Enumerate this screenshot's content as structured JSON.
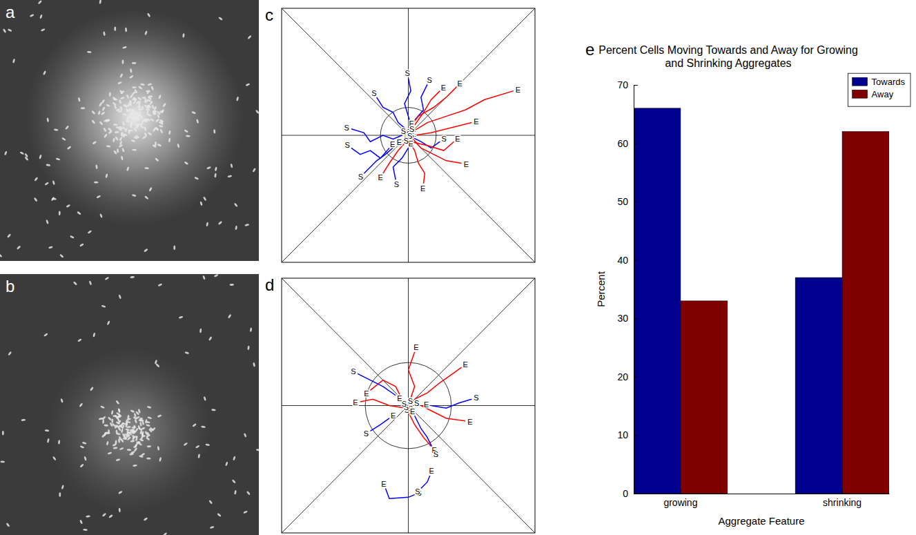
{
  "chart_data": [
    {
      "type": "image",
      "panel_label": "a"
    },
    {
      "type": "image",
      "panel_label": "b"
    },
    {
      "type": "line",
      "panel_label": "c",
      "xlim": [
        -1,
        1
      ],
      "ylim": [
        -1,
        1
      ],
      "tick_labels": false,
      "aggregate_radius": 0.22,
      "start_label": "S",
      "end_label": "E",
      "series": [
        {
          "color": "#0000ff",
          "x": [
            -0.45,
            -0.35,
            -0.3,
            -0.2,
            -0.12,
            -0.05
          ],
          "values": [
            0.05,
            0.02,
            -0.05,
            0.0,
            -0.03,
            0.0
          ]
        },
        {
          "color": "#0000ff",
          "x": [
            0.0,
            0.02,
            -0.03,
            0.0,
            0.03
          ],
          "values": [
            0.45,
            0.35,
            0.25,
            0.15,
            0.05
          ]
        },
        {
          "color": "#0000ff",
          "x": [
            -0.35,
            -0.3,
            -0.25,
            -0.18,
            -0.1
          ],
          "values": [
            -0.3,
            -0.25,
            -0.2,
            -0.15,
            -0.08
          ]
        },
        {
          "color": "#0000ff",
          "x": [
            -0.25,
            -0.2,
            -0.12,
            -0.08,
            -0.02
          ],
          "values": [
            0.3,
            0.22,
            0.18,
            0.1,
            0.05
          ]
        },
        {
          "color": "#0000ff",
          "x": [
            0.15,
            0.1,
            0.12,
            0.05
          ],
          "values": [
            0.4,
            0.3,
            0.2,
            0.12
          ]
        },
        {
          "color": "#0000ff",
          "x": [
            -0.45,
            -0.38,
            -0.3,
            -0.22,
            -0.15
          ],
          "values": [
            -0.1,
            -0.15,
            -0.12,
            -0.18,
            -0.1
          ]
        },
        {
          "color": "#0000ff",
          "x": [
            0.25,
            0.18,
            0.1,
            0.04
          ],
          "values": [
            -0.05,
            -0.1,
            -0.05,
            -0.02
          ]
        },
        {
          "color": "#0000ff",
          "x": [
            -0.1,
            -0.12,
            -0.05,
            0.0
          ],
          "values": [
            -0.35,
            -0.25,
            -0.18,
            -0.1
          ]
        },
        {
          "color": "#ff0000",
          "x": [
            0.02,
            0.15,
            0.3,
            0.45,
            0.6,
            0.83
          ],
          "values": [
            0.02,
            0.1,
            0.15,
            0.2,
            0.28,
            0.35
          ]
        },
        {
          "color": "#ff0000",
          "x": [
            0.0,
            0.08,
            0.2,
            0.3,
            0.38
          ],
          "values": [
            0.05,
            0.15,
            0.22,
            0.3,
            0.38
          ]
        },
        {
          "color": "#ff0000",
          "x": [
            0.03,
            0.1,
            0.2,
            0.3,
            0.42
          ],
          "values": [
            -0.02,
            -0.1,
            -0.15,
            -0.2,
            -0.22
          ]
        },
        {
          "color": "#ff0000",
          "x": [
            -0.02,
            0.05,
            0.08,
            0.13,
            0.12
          ],
          "values": [
            0.0,
            -0.12,
            -0.22,
            -0.3,
            -0.38
          ]
        },
        {
          "color": "#ff0000",
          "x": [
            0.0,
            -0.08,
            -0.15,
            -0.2
          ],
          "values": [
            -0.03,
            -0.12,
            -0.22,
            -0.3
          ]
        },
        {
          "color": "#ff0000",
          "x": [
            0.05,
            0.12,
            0.18,
            0.25
          ],
          "values": [
            0.08,
            0.18,
            0.28,
            0.35
          ]
        },
        {
          "color": "#ff0000",
          "x": [
            0.05,
            0.18,
            0.3,
            0.42,
            0.5
          ],
          "values": [
            0.0,
            0.02,
            0.05,
            0.08,
            0.1
          ]
        },
        {
          "color": "#ff0000",
          "x": [
            0.02,
            0.15,
            0.28,
            0.36
          ],
          "values": [
            -0.05,
            -0.08,
            -0.12,
            -0.05
          ]
        }
      ]
    },
    {
      "type": "line",
      "panel_label": "d",
      "xlim": [
        -1,
        1
      ],
      "ylim": [
        -1,
        1
      ],
      "tick_labels": false,
      "aggregate_radius": 0.34,
      "start_label": "S",
      "end_label": "E",
      "series": [
        {
          "color": "#ff0000",
          "x": [
            0.0,
            0.05,
            0.0,
            0.05
          ],
          "values": [
            0.0,
            0.15,
            0.28,
            0.42
          ]
        },
        {
          "color": "#ff0000",
          "x": [
            0.05,
            0.15,
            0.25,
            0.35,
            0.42
          ],
          "values": [
            0.05,
            0.1,
            0.18,
            0.25,
            0.3
          ]
        },
        {
          "color": "#ff0000",
          "x": [
            -0.02,
            -0.15,
            -0.28,
            -0.38
          ],
          "values": [
            -0.02,
            0.0,
            0.05,
            0.03
          ]
        },
        {
          "color": "#ff0000",
          "x": [
            0.0,
            0.05,
            0.12,
            0.18
          ],
          "values": [
            -0.05,
            -0.15,
            -0.25,
            -0.32
          ]
        },
        {
          "color": "#ff0000",
          "x": [
            0.1,
            0.2,
            0.3,
            0.45
          ],
          "values": [
            0.0,
            -0.05,
            -0.1,
            -0.12
          ]
        },
        {
          "color": "#ff0000",
          "x": [
            -0.05,
            -0.1,
            -0.2,
            -0.3
          ],
          "values": [
            0.05,
            0.15,
            0.2,
            0.12
          ]
        },
        {
          "color": "#0000ff",
          "x": [
            -0.4,
            -0.3,
            -0.2,
            -0.1
          ],
          "values": [
            0.25,
            0.2,
            0.15,
            0.08
          ]
        },
        {
          "color": "#0000ff",
          "x": [
            0.5,
            0.4,
            0.3,
            0.18
          ],
          "values": [
            0.05,
            0.02,
            -0.02,
            0.0
          ]
        },
        {
          "color": "#0000ff",
          "x": [
            0.2,
            0.15,
            0.1,
            0.05
          ],
          "values": [
            -0.35,
            -0.25,
            -0.18,
            -0.08
          ]
        },
        {
          "color": "#0000ff",
          "x": [
            -0.3,
            -0.22,
            -0.15
          ],
          "values": [
            -0.2,
            -0.15,
            -0.1
          ]
        },
        {
          "color": "#0000ff",
          "x": [
            0.05,
            0.0,
            -0.15,
            -0.18
          ],
          "values": [
            -0.7,
            -0.72,
            -0.73,
            -0.65
          ]
        },
        {
          "color": "#0000ff",
          "x": [
            0.1,
            0.15,
            0.17
          ],
          "values": [
            -0.65,
            -0.6,
            -0.55
          ]
        }
      ]
    },
    {
      "type": "bar",
      "panel_label": "e",
      "title": "Percent Cells Moving Towards and Away for Growing and Shrinking Aggregates",
      "xlabel": "Aggregate Feature",
      "ylabel": "Percent",
      "categories": [
        "growing",
        "shrinking"
      ],
      "series": [
        {
          "name": "Towards",
          "color": "#00008f",
          "values": [
            66,
            37
          ]
        },
        {
          "name": "Away",
          "color": "#800000",
          "values": [
            33,
            62
          ]
        }
      ],
      "ylim": [
        0,
        70
      ],
      "yticks": [
        0,
        10,
        20,
        30,
        40,
        50,
        60,
        70
      ],
      "grid": false,
      "legend": "upper right"
    }
  ]
}
